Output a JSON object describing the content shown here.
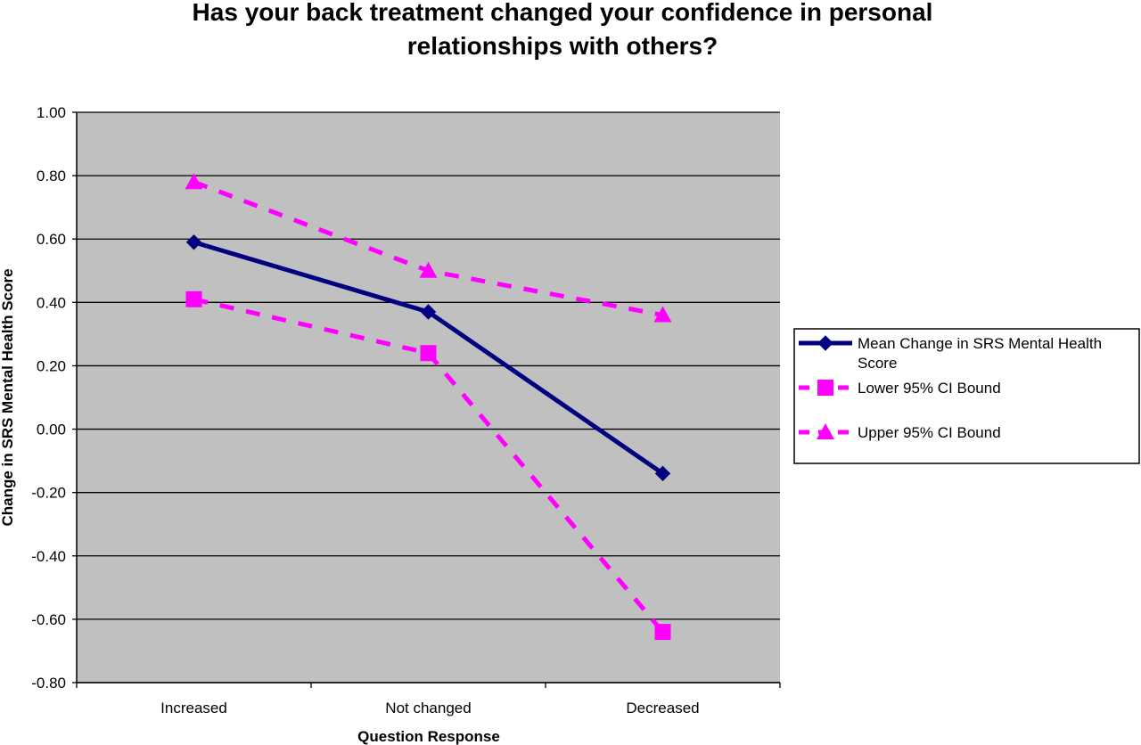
{
  "chart_data": {
    "type": "line",
    "title_lines": [
      "Has your back treatment changed your confidence in personal",
      "relationships with others?"
    ],
    "xlabel": "Question Response",
    "ylabel": "Change in SRS Mental Health Score",
    "categories": [
      "Increased",
      "Not changed",
      "Decreased"
    ],
    "ylim": [
      -0.8,
      1.0
    ],
    "yticks": [
      1.0,
      0.8,
      0.6,
      0.4,
      0.2,
      0.0,
      -0.2,
      -0.4,
      -0.6,
      -0.8
    ],
    "ytick_labels": [
      "1.00",
      "0.80",
      "0.60",
      "0.40",
      "0.20",
      "0.00",
      "-0.20",
      "-0.40",
      "-0.60",
      "-0.80"
    ],
    "grid": true,
    "plot_background": "#c0c0c0",
    "legend_position": "right",
    "series": [
      {
        "name_lines": [
          "Mean Change in SRS Mental Health",
          "Score"
        ],
        "values": [
          0.59,
          0.37,
          -0.14
        ],
        "color": "#000080",
        "line_style": "solid",
        "marker": "diamond"
      },
      {
        "name_lines": [
          "Lower 95% CI Bound"
        ],
        "values": [
          0.41,
          0.24,
          -0.64
        ],
        "color": "#ff00ff",
        "line_style": "dashed",
        "marker": "square"
      },
      {
        "name_lines": [
          "Upper 95% CI Bound"
        ],
        "values": [
          0.78,
          0.5,
          0.36
        ],
        "color": "#ff00ff",
        "line_style": "dashed",
        "marker": "triangle"
      }
    ]
  }
}
